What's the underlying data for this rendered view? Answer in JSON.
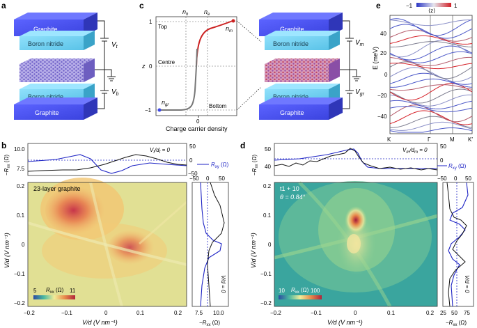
{
  "panel_letters": {
    "a": "a",
    "b": "b",
    "c": "c",
    "d": "d",
    "e": "e"
  },
  "stack_left": {
    "graphite_top": "Graphite",
    "bn_top": "Boron nitride",
    "bn_bottom": "Boron nitride",
    "graphite_bottom": "Graphite",
    "vt_label": "V",
    "vt_sub": "t",
    "vb_label": "V",
    "vb_sub": "b"
  },
  "stack_right": {
    "graphite_top": "Graphite",
    "bn_top": "Boron nitride",
    "bn_bottom": "Boron nitride",
    "graphite_bottom": "Graphite",
    "vm_label": "V",
    "vm_sub": "m",
    "vgr_label": "V",
    "vgr_sub": "gr"
  },
  "panel_c": {
    "nh": "n",
    "nh_sub": "h",
    "ne": "n",
    "ne_sub": "e",
    "nm": "n",
    "nm_sub": "m",
    "ngr": "n",
    "ngr_sub": "gr",
    "top": "Top",
    "centre": "Centre",
    "bottom": "Bottom",
    "ylabel": "z",
    "xlabel": "Charge carrier density",
    "y_ticks": [
      "1",
      "0",
      "−1"
    ],
    "x_tick": "0"
  },
  "panel_e": {
    "colorbar_min": "−1",
    "colorbar_label": "⟨z⟩",
    "colorbar_max": "1",
    "ylabel": "E (meV)",
    "y_ticks": [
      "40",
      "20",
      "0",
      "−20",
      "−40"
    ],
    "k_labels": [
      "K",
      "Γ",
      "M",
      "K′"
    ]
  },
  "panel_b": {
    "title": "23-layer graphite",
    "top_left_label": "R",
    "top_left_sub": "xx",
    "top_left_unit": " (Ω)",
    "top_left_ticks": [
      "10.0",
      "7.5"
    ],
    "top_right_label": "R",
    "top_right_sub": "xy",
    "top_right_unit": " (Ω)",
    "top_right_ticks": [
      "50",
      "0",
      "−50"
    ],
    "top_cond": "V",
    "top_cond_sub": "t",
    "top_cond_mid": "/d",
    "top_cond_sub2": "t",
    "top_cond_end": " = 0",
    "right_top_ticks": [
      "−50",
      "0",
      "50"
    ],
    "right_bottom_ticks": [
      "7.5",
      "10.0"
    ],
    "right_bottom_label": "R",
    "right_bottom_sub": "xx",
    "right_bottom_unit": " (Ω)",
    "right_cond": "V/d = 0",
    "ylabel": "V/d (V nm⁻¹)",
    "xlabel": "V/d (V nm⁻¹)",
    "y_ticks": [
      "0.2",
      "0.1",
      "0",
      "−0.1",
      "−0.2"
    ],
    "x_ticks": [
      "−0.2",
      "−0.1",
      "0",
      "0.1",
      "0.2"
    ],
    "cbar_label": "R",
    "cbar_sub": "xx",
    "cbar_unit": " (Ω)",
    "cbar_min": "5",
    "cbar_max": "11"
  },
  "panel_d": {
    "title_line1": "t1 + 10",
    "title_line2": "θ = 0.84°",
    "top_left_label": "R",
    "top_left_sub": "xx",
    "top_left_unit": " (Ω)",
    "top_left_ticks": [
      "50",
      "40"
    ],
    "top_right_label": "R",
    "top_right_sub": "xy",
    "top_right_unit": " (Ω)",
    "top_right_ticks": [
      "50",
      "0"
    ],
    "top_cond": "V",
    "top_cond_sub": "m",
    "top_cond_mid": "/d",
    "top_cond_sub2": "m",
    "top_cond_end": " = 0",
    "right_top_ticks": [
      "−50",
      "0",
      "50"
    ],
    "right_bottom_ticks": [
      "25",
      "50",
      "75"
    ],
    "right_bottom_label": "R",
    "right_bottom_sub": "xx",
    "right_bottom_unit": " (Ω)",
    "right_cond": "V/d = 0",
    "ylabel": "V/d (V nm⁻¹)",
    "xlabel": "V/d (V nm⁻¹)",
    "y_ticks": [
      "0.2",
      "0.1",
      "0",
      "−0.1",
      "−0.2"
    ],
    "x_ticks": [
      "−0.2",
      "−0.1",
      "0",
      "0.1",
      "0.2"
    ],
    "cbar_label": "R",
    "cbar_sub": "xx",
    "cbar_unit": " (Ω)",
    "cbar_min": "10",
    "cbar_max": "100"
  },
  "colors": {
    "graphite_blue": "#3f48e6",
    "bn_cyan": "#5cc6ea",
    "lattice": "#8a7fd6",
    "rxy_blue": "#1c22c4",
    "band_red": "#d6222a",
    "band_blue": "#4b57c8"
  }
}
